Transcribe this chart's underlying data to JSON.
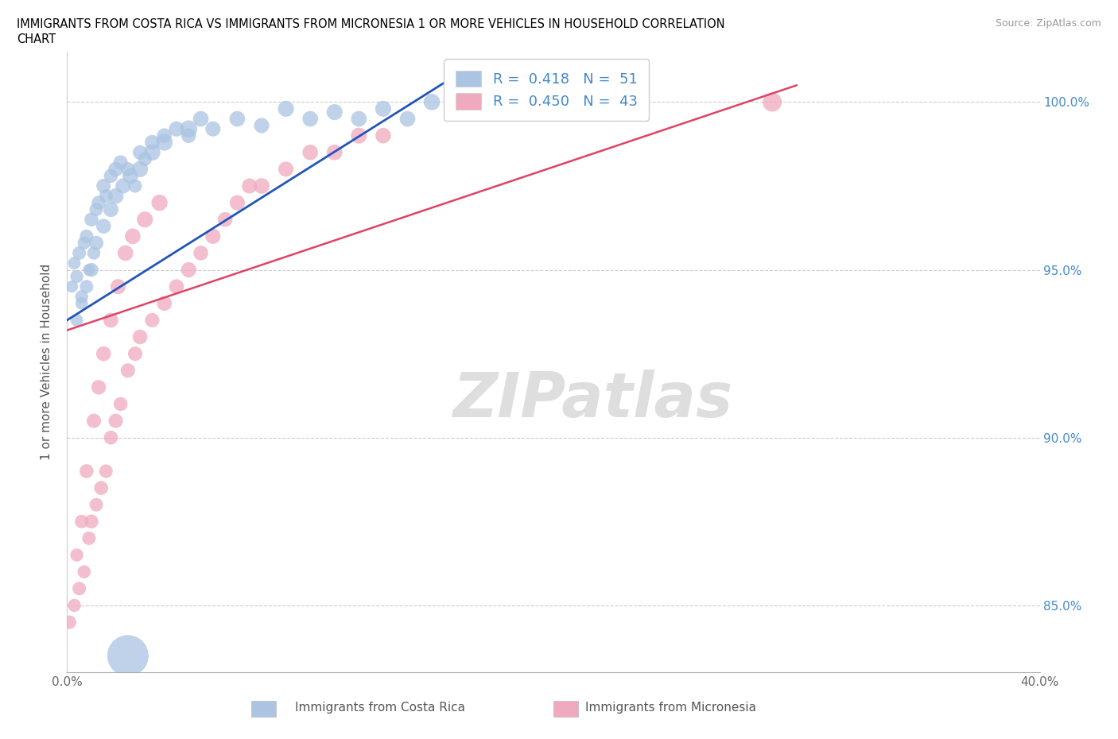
{
  "title_line1": "IMMIGRANTS FROM COSTA RICA VS IMMIGRANTS FROM MICRONESIA 1 OR MORE VEHICLES IN HOUSEHOLD CORRELATION",
  "title_line2": "CHART",
  "source_text": "Source: ZipAtlas.com",
  "ylabel": "1 or more Vehicles in Household",
  "xlim": [
    0.0,
    40.0
  ],
  "ylim": [
    83.0,
    101.5
  ],
  "y_ticks": [
    85.0,
    90.0,
    95.0,
    100.0
  ],
  "y_tick_labels": [
    "85.0%",
    "90.0%",
    "95.0%",
    "100.0%"
  ],
  "watermark": "ZIPatlas",
  "blue_color": "#aac4e2",
  "pink_color": "#f0aabf",
  "blue_line_color": "#2255bb",
  "pink_line_color": "#dd4466",
  "legend_R_blue": "0.418",
  "legend_N_blue": "51",
  "legend_R_pink": "0.450",
  "legend_N_pink": "43",
  "legend_label_blue": "Immigrants from Costa Rica",
  "legend_label_pink": "Immigrants from Micronesia",
  "blue_x": [
    0.2,
    0.3,
    0.4,
    0.5,
    0.6,
    0.7,
    0.8,
    0.9,
    1.0,
    1.1,
    1.2,
    1.3,
    1.5,
    1.6,
    1.8,
    2.0,
    2.2,
    2.5,
    2.8,
    3.0,
    3.2,
    3.5,
    4.0,
    4.5,
    5.0,
    5.5,
    6.0,
    7.0,
    8.0,
    9.0,
    10.0,
    11.0,
    12.0,
    13.0,
    14.0,
    15.0,
    0.4,
    0.6,
    0.8,
    1.0,
    1.2,
    1.5,
    1.8,
    2.0,
    2.3,
    2.6,
    3.0,
    3.5,
    4.0,
    5.0,
    2.5
  ],
  "blue_y": [
    94.5,
    95.2,
    94.8,
    95.5,
    94.0,
    95.8,
    96.0,
    95.0,
    96.5,
    95.5,
    96.8,
    97.0,
    97.5,
    97.2,
    97.8,
    98.0,
    98.2,
    98.0,
    97.5,
    98.5,
    98.3,
    98.8,
    99.0,
    99.2,
    99.0,
    99.5,
    99.2,
    99.5,
    99.3,
    99.8,
    99.5,
    99.7,
    99.5,
    99.8,
    99.5,
    100.0,
    93.5,
    94.2,
    94.5,
    95.0,
    95.8,
    96.3,
    96.8,
    97.2,
    97.5,
    97.8,
    98.0,
    98.5,
    98.8,
    99.2,
    83.5
  ],
  "blue_sizes": [
    120,
    130,
    140,
    150,
    130,
    140,
    150,
    120,
    160,
    140,
    150,
    160,
    170,
    150,
    160,
    180,
    170,
    160,
    150,
    170,
    160,
    180,
    180,
    190,
    180,
    200,
    190,
    200,
    190,
    210,
    200,
    210,
    200,
    210,
    200,
    220,
    130,
    140,
    150,
    160,
    170,
    180,
    190,
    200,
    190,
    200,
    210,
    220,
    230,
    240,
    1400
  ],
  "pink_x": [
    0.1,
    0.3,
    0.5,
    0.7,
    0.9,
    1.0,
    1.2,
    1.4,
    1.6,
    1.8,
    2.0,
    2.2,
    2.5,
    2.8,
    3.0,
    3.5,
    4.0,
    4.5,
    5.0,
    5.5,
    6.0,
    6.5,
    7.0,
    7.5,
    8.0,
    9.0,
    10.0,
    11.0,
    12.0,
    13.0,
    0.4,
    0.6,
    0.8,
    1.1,
    1.3,
    1.5,
    1.8,
    2.1,
    2.4,
    2.7,
    3.2,
    3.8,
    29.0
  ],
  "pink_y": [
    84.5,
    85.0,
    85.5,
    86.0,
    87.0,
    87.5,
    88.0,
    88.5,
    89.0,
    90.0,
    90.5,
    91.0,
    92.0,
    92.5,
    93.0,
    93.5,
    94.0,
    94.5,
    95.0,
    95.5,
    96.0,
    96.5,
    97.0,
    97.5,
    97.5,
    98.0,
    98.5,
    98.5,
    99.0,
    99.0,
    86.5,
    87.5,
    89.0,
    90.5,
    91.5,
    92.5,
    93.5,
    94.5,
    95.5,
    96.0,
    96.5,
    97.0,
    100.0
  ],
  "pink_sizes": [
    150,
    140,
    150,
    140,
    150,
    160,
    150,
    160,
    150,
    160,
    170,
    160,
    170,
    170,
    180,
    170,
    180,
    180,
    190,
    180,
    190,
    180,
    190,
    190,
    200,
    190,
    200,
    200,
    210,
    200,
    140,
    150,
    160,
    170,
    175,
    180,
    185,
    190,
    200,
    200,
    210,
    215,
    300
  ]
}
